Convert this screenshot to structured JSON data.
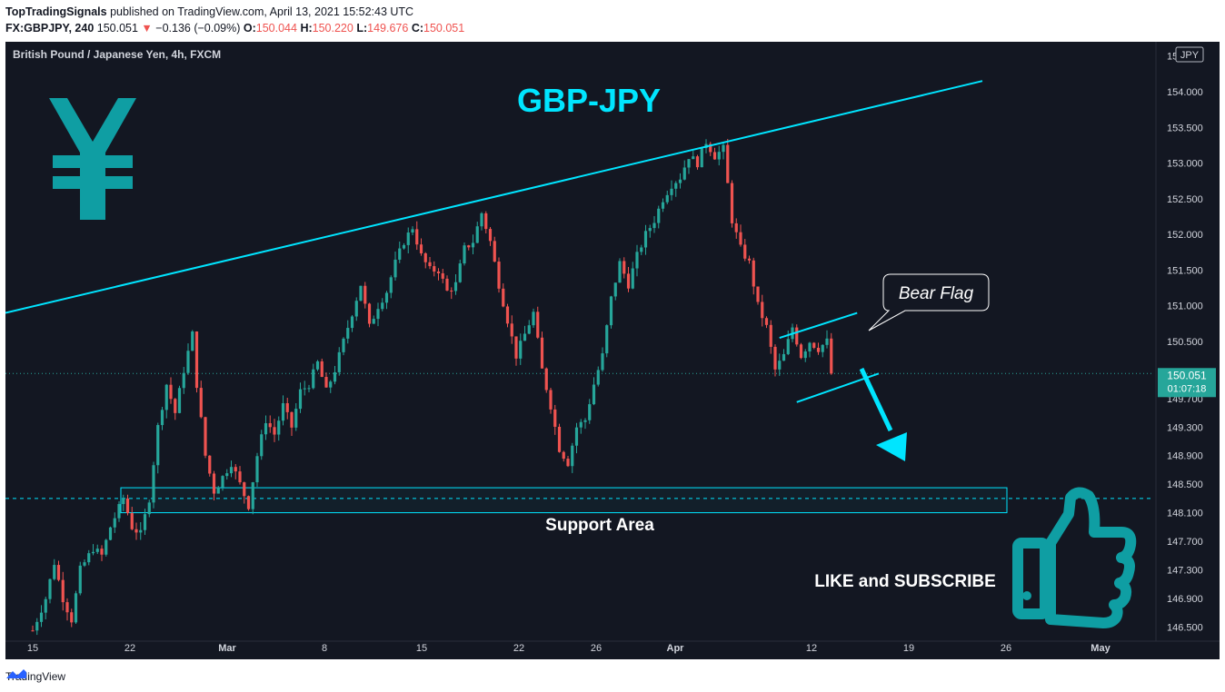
{
  "header": {
    "publisher": "TopTradingSignals",
    "published_text": "published on TradingView.com, April 13, 2021 15:52:43 UTC",
    "symbol": "FX:GBPJPY, 240",
    "last": "150.051",
    "change_arrow": "▼",
    "change": "−0.136 (−0.09%)",
    "o_label": "O:",
    "o": "150.044",
    "h_label": "H:",
    "h": "150.220",
    "l_label": "L:",
    "l": "149.676",
    "c_label": "C:",
    "c": "150.051"
  },
  "chart_title": "British Pound / Japanese Yen, 4h, FXCM",
  "currency_badge": "JPY",
  "annotations": {
    "pair_title": "GBP-JPY",
    "bear_flag": "Bear Flag",
    "support_area": "Support Area",
    "like_subscribe": "LIKE and SUBSCRIBE",
    "yen_symbol": "¥",
    "thumb_icon": "thumbs-up-icon"
  },
  "price_label": {
    "price": "150.051",
    "countdown": "01:07:18"
  },
  "footer": {
    "brand": "TradingView",
    "logo_icon": "tradingview-logo-icon"
  },
  "colors": {
    "background": "#131722",
    "up": "#26a69a",
    "down": "#ef5350",
    "accent": "#00e5ff",
    "price_tag": "#26a69a"
  },
  "chart_data": {
    "type": "candlestick",
    "symbol": "GBPJPY",
    "timeframe": "4h",
    "ylim": [
      146.3,
      154.7
    ],
    "y_ticks": [
      146.5,
      146.9,
      147.3,
      147.7,
      148.1,
      148.5,
      148.9,
      149.3,
      149.7,
      150.1,
      150.5,
      151.0,
      151.5,
      152.0,
      152.5,
      153.0,
      153.5,
      154.0,
      154.5
    ],
    "y_tick_labels": [
      "146.500",
      "146.900",
      "147.300",
      "147.700",
      "148.100",
      "148.500",
      "148.900",
      "149.300",
      "149.700",
      "",
      "150.500",
      "151.000",
      "151.500",
      "152.000",
      "152.500",
      "153.000",
      "153.500",
      "154.000",
      "154.500"
    ],
    "x_tick_labels": [
      "15",
      "22",
      "Mar",
      "8",
      "15",
      "22",
      "26",
      "Apr",
      "12",
      "19",
      "26",
      "May"
    ],
    "price_path": [
      [
        0,
        146.45
      ],
      [
        3,
        146.9
      ],
      [
        5,
        147.4
      ],
      [
        7,
        146.9
      ],
      [
        9,
        146.6
      ],
      [
        11,
        147.3
      ],
      [
        14,
        147.6
      ],
      [
        16,
        147.5
      ],
      [
        18,
        147.9
      ],
      [
        21,
        148.3
      ],
      [
        23,
        147.9
      ],
      [
        25,
        147.8
      ],
      [
        27,
        148.3
      ],
      [
        29,
        149.3
      ],
      [
        31,
        149.9
      ],
      [
        33,
        149.5
      ],
      [
        35,
        150.1
      ],
      [
        37,
        150.6
      ],
      [
        38,
        149.9
      ],
      [
        40,
        148.9
      ],
      [
        42,
        148.4
      ],
      [
        44,
        148.6
      ],
      [
        46,
        148.8
      ],
      [
        48,
        148.5
      ],
      [
        50,
        148.2
      ],
      [
        52,
        148.9
      ],
      [
        54,
        149.4
      ],
      [
        56,
        149.2
      ],
      [
        58,
        149.6
      ],
      [
        60,
        149.3
      ],
      [
        62,
        149.8
      ],
      [
        64,
        149.9
      ],
      [
        66,
        150.2
      ],
      [
        68,
        149.8
      ],
      [
        70,
        150.1
      ],
      [
        72,
        150.5
      ],
      [
        74,
        150.9
      ],
      [
        76,
        151.3
      ],
      [
        78,
        150.7
      ],
      [
        80,
        151.0
      ],
      [
        82,
        151.2
      ],
      [
        84,
        151.6
      ],
      [
        86,
        151.9
      ],
      [
        88,
        152.1
      ],
      [
        90,
        151.7
      ],
      [
        92,
        151.5
      ],
      [
        94,
        151.5
      ],
      [
        96,
        151.2
      ],
      [
        98,
        151.3
      ],
      [
        100,
        151.8
      ],
      [
        102,
        151.9
      ],
      [
        104,
        152.3
      ],
      [
        106,
        151.9
      ],
      [
        108,
        151.3
      ],
      [
        110,
        150.8
      ],
      [
        112,
        150.3
      ],
      [
        114,
        150.6
      ],
      [
        116,
        150.9
      ],
      [
        118,
        150.1
      ],
      [
        120,
        149.6
      ],
      [
        122,
        149.0
      ],
      [
        124,
        148.8
      ],
      [
        126,
        149.3
      ],
      [
        128,
        149.4
      ],
      [
        130,
        149.9
      ],
      [
        132,
        150.3
      ],
      [
        134,
        151.1
      ],
      [
        136,
        151.6
      ],
      [
        138,
        151.3
      ],
      [
        140,
        151.7
      ],
      [
        142,
        152.0
      ],
      [
        144,
        152.2
      ],
      [
        146,
        152.5
      ],
      [
        148,
        152.7
      ],
      [
        150,
        152.8
      ],
      [
        152,
        153.1
      ],
      [
        154,
        153.0
      ],
      [
        156,
        153.3
      ],
      [
        158,
        153.1
      ],
      [
        160,
        153.2
      ],
      [
        162,
        152.2
      ],
      [
        164,
        151.8
      ],
      [
        166,
        151.6
      ],
      [
        168,
        151.0
      ],
      [
        170,
        150.7
      ],
      [
        172,
        150.1
      ],
      [
        174,
        150.3
      ],
      [
        176,
        150.7
      ],
      [
        178,
        150.3
      ],
      [
        180,
        150.5
      ],
      [
        182,
        150.4
      ],
      [
        184,
        150.5
      ],
      [
        185,
        150.05
      ]
    ],
    "trendline_upper": {
      "from": [
        0,
        150.9
      ],
      "to": [
        220,
        154.15
      ]
    },
    "flag_upper": {
      "from": [
        173,
        150.55
      ],
      "to": [
        191,
        150.9
      ]
    },
    "flag_lower": {
      "from": [
        177,
        149.65
      ],
      "to": [
        196,
        150.05
      ]
    },
    "support_zone": {
      "from": 148.1,
      "to": 148.45
    },
    "support_dashed_line": 148.3,
    "last_price": 150.051
  }
}
